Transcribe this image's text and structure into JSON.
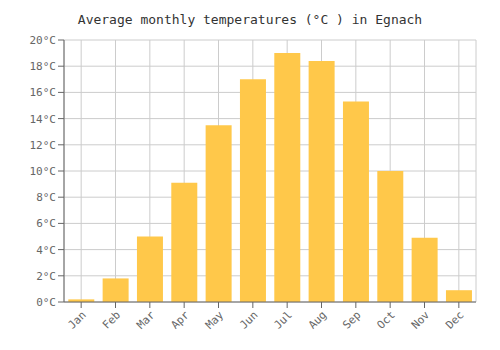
{
  "chart_data": {
    "type": "bar",
    "title": "Average monthly temperatures (°C ) in Egnach",
    "categories": [
      "Jan",
      "Feb",
      "Mar",
      "Apr",
      "May",
      "Jun",
      "Jul",
      "Aug",
      "Sep",
      "Oct",
      "Nov",
      "Dec"
    ],
    "values": [
      0.2,
      1.8,
      5.0,
      9.1,
      13.5,
      17.0,
      19.0,
      18.4,
      15.3,
      10.0,
      4.9,
      0.9
    ],
    "color": "#FFC84A",
    "ylim": [
      0,
      20
    ],
    "yticks": [
      {
        "value": 0,
        "label": "0°C"
      },
      {
        "value": 2,
        "label": "2°C"
      },
      {
        "value": 4,
        "label": "4°C"
      },
      {
        "value": 6,
        "label": "6°C"
      },
      {
        "value": 8,
        "label": "8°C"
      },
      {
        "value": 10,
        "label": "10°C"
      },
      {
        "value": 12,
        "label": "12°C"
      },
      {
        "value": 14,
        "label": "14°C"
      },
      {
        "value": 16,
        "label": "16°C"
      },
      {
        "value": 18,
        "label": "18°C"
      },
      {
        "value": 20,
        "label": "20°C"
      }
    ],
    "grid": true
  }
}
